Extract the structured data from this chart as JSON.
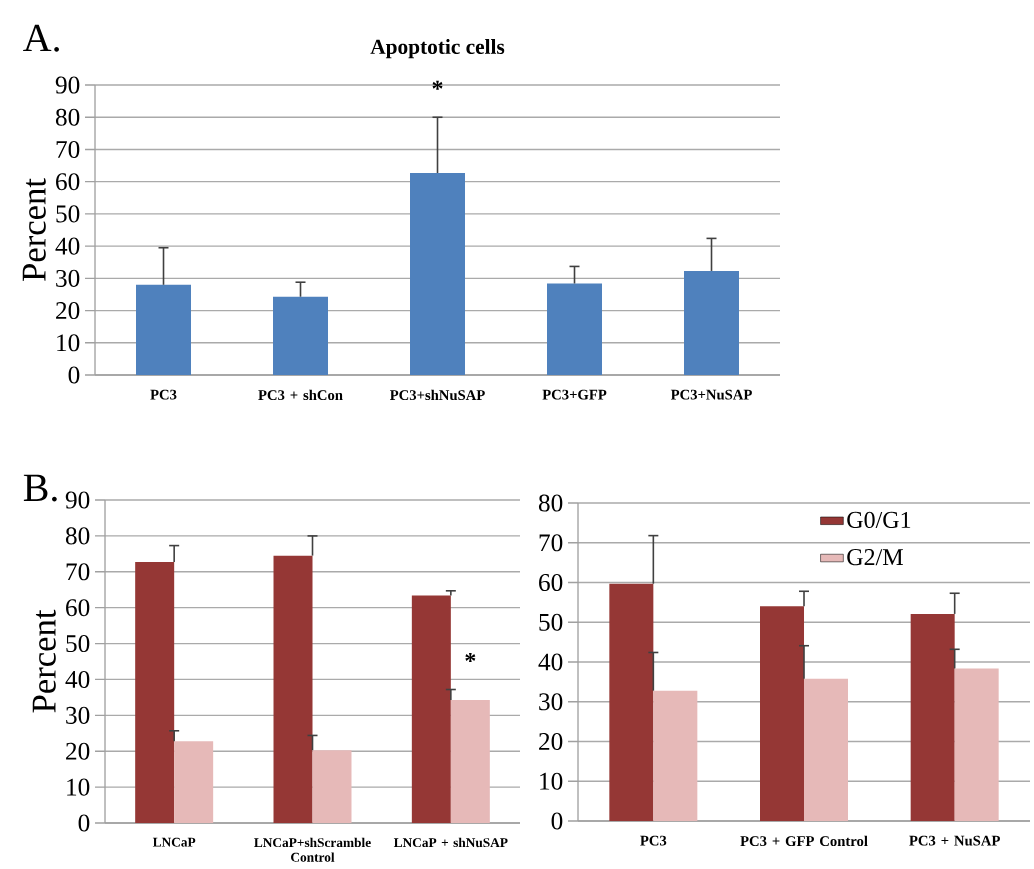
{
  "chart_data": [
    {
      "type": "bar",
      "title": "Apoptotic cells",
      "ylabel": "Percent",
      "categories": [
        "PC3",
        "PC3 + shCon",
        "PC3+shNuSAP",
        "PC3+GFP",
        "PC3+NuSAP"
      ],
      "values": [
        28,
        24.3,
        62.7,
        28.4,
        32.3
      ],
      "errors": [
        [
          28,
          39.5
        ],
        [
          24.3,
          28.8
        ],
        [
          62.7,
          80
        ],
        [
          28.4,
          33.7
        ],
        [
          32.3,
          42.4
        ]
      ],
      "color": "#4f81bd",
      "ylim": [
        0,
        90
      ],
      "yticks": [
        0,
        10,
        20,
        30,
        40,
        50,
        60,
        70,
        80,
        90
      ],
      "grid": "y",
      "annotations": [
        "A.",
        {
          "text": "*",
          "x": "PC3+shNuSAP",
          "y": 80
        }
      ]
    },
    {
      "type": "bar",
      "ylabel": "Percent",
      "categories": [
        "LNCaP",
        "LNCaP+shScramble Control",
        "LNCaP + shNuSAP"
      ],
      "series": [
        {
          "color": "#953735",
          "values": [
            72.7,
            74.5,
            63.4
          ],
          "errors": [
            [
              72.7,
              77.3
            ],
            [
              74.5,
              80
            ],
            [
              63.4,
              64.7
            ]
          ]
        },
        {
          "color": "#e6b9b8",
          "values": [
            22.8,
            20.3,
            34.3
          ],
          "errors": [
            [
              22.8,
              25.7
            ],
            [
              20.3,
              24.4
            ],
            [
              34.3,
              37.2
            ]
          ]
        }
      ],
      "ylim": [
        0,
        90
      ],
      "yticks": [
        0,
        10,
        20,
        30,
        40,
        50,
        60,
        70,
        80,
        90
      ],
      "grid": "y",
      "annotations": [
        "B.",
        {
          "text": "*",
          "x": "LNCaP + shNuSAP",
          "y": 37.2
        }
      ]
    },
    {
      "type": "bar",
      "categories": [
        "PC3",
        "PC3 + GFP Control",
        "PC3 + NuSAP"
      ],
      "series": [
        {
          "name": "G0/G1",
          "color": "#953735",
          "values": [
            59.7,
            54.0,
            52.1
          ],
          "errors": [
            [
              59.7,
              71.8
            ],
            [
              54.0,
              57.8
            ],
            [
              52.1,
              57.3
            ]
          ]
        },
        {
          "name": "G2/M",
          "color": "#e6b9b8",
          "values": [
            32.8,
            35.8,
            38.4
          ],
          "errors": [
            [
              32.8,
              42.4
            ],
            [
              35.8,
              44.1
            ],
            [
              38.4,
              43.2
            ]
          ]
        }
      ],
      "ylim": [
        0,
        80
      ],
      "yticks": [
        0,
        10,
        20,
        30,
        40,
        50,
        60,
        70,
        80
      ],
      "grid": "y",
      "legend": "top"
    }
  ]
}
